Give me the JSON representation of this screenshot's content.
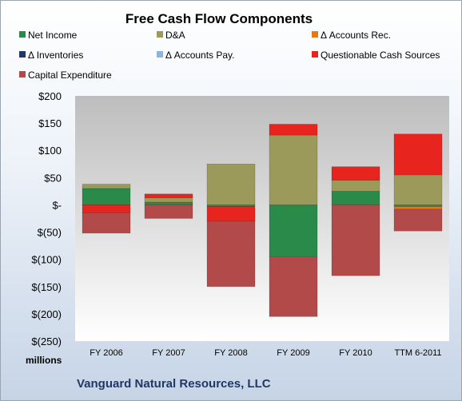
{
  "chart_data": {
    "type": "bar",
    "stacked": true,
    "title": "Free Cash Flow Components",
    "unit_label": "millions",
    "footer": "Vanguard Natural Resources, LLC",
    "categories": [
      "FY 2006",
      "FY 2007",
      "FY 2008",
      "FY 2009",
      "FY 2010",
      "TTM 6-2011"
    ],
    "yaxis": {
      "min": -250,
      "max": 200,
      "step": 50,
      "tick_labels": [
        "$(250)",
        "$(200)",
        "$(150)",
        "$(100)",
        "$(50)",
        "$-",
        "$50",
        "$100",
        "$150",
        "$200"
      ]
    },
    "legend_position": "top",
    "grid": false,
    "series": [
      {
        "name": "Net Income",
        "color": "#2a8a4a",
        "values": [
          30,
          5,
          -3,
          -95,
          25,
          -3
        ]
      },
      {
        "name": "D&A",
        "color": "#9c9a5a",
        "values": [
          8,
          8,
          75,
          128,
          20,
          55
        ]
      },
      {
        "name": "Δ Accounts Rec.",
        "color": "#e07b18",
        "values": [
          0,
          0,
          0,
          0,
          0,
          -5
        ]
      },
      {
        "name": "Δ Inventories",
        "color": "#1f3864",
        "values": [
          0,
          0,
          0,
          0,
          0,
          0
        ]
      },
      {
        "name": "Δ Accounts Pay.",
        "color": "#8fb4dc",
        "values": [
          0,
          0,
          0,
          0,
          0,
          0
        ]
      },
      {
        "name": "Questionable Cash Sources",
        "color": "#e8241e",
        "values": [
          -15,
          7,
          -27,
          20,
          25,
          75
        ]
      },
      {
        "name": "Capital Expenditure",
        "color": "#b34a4a",
        "values": [
          -37,
          -25,
          -120,
          -110,
          -130,
          -40
        ]
      }
    ]
  }
}
